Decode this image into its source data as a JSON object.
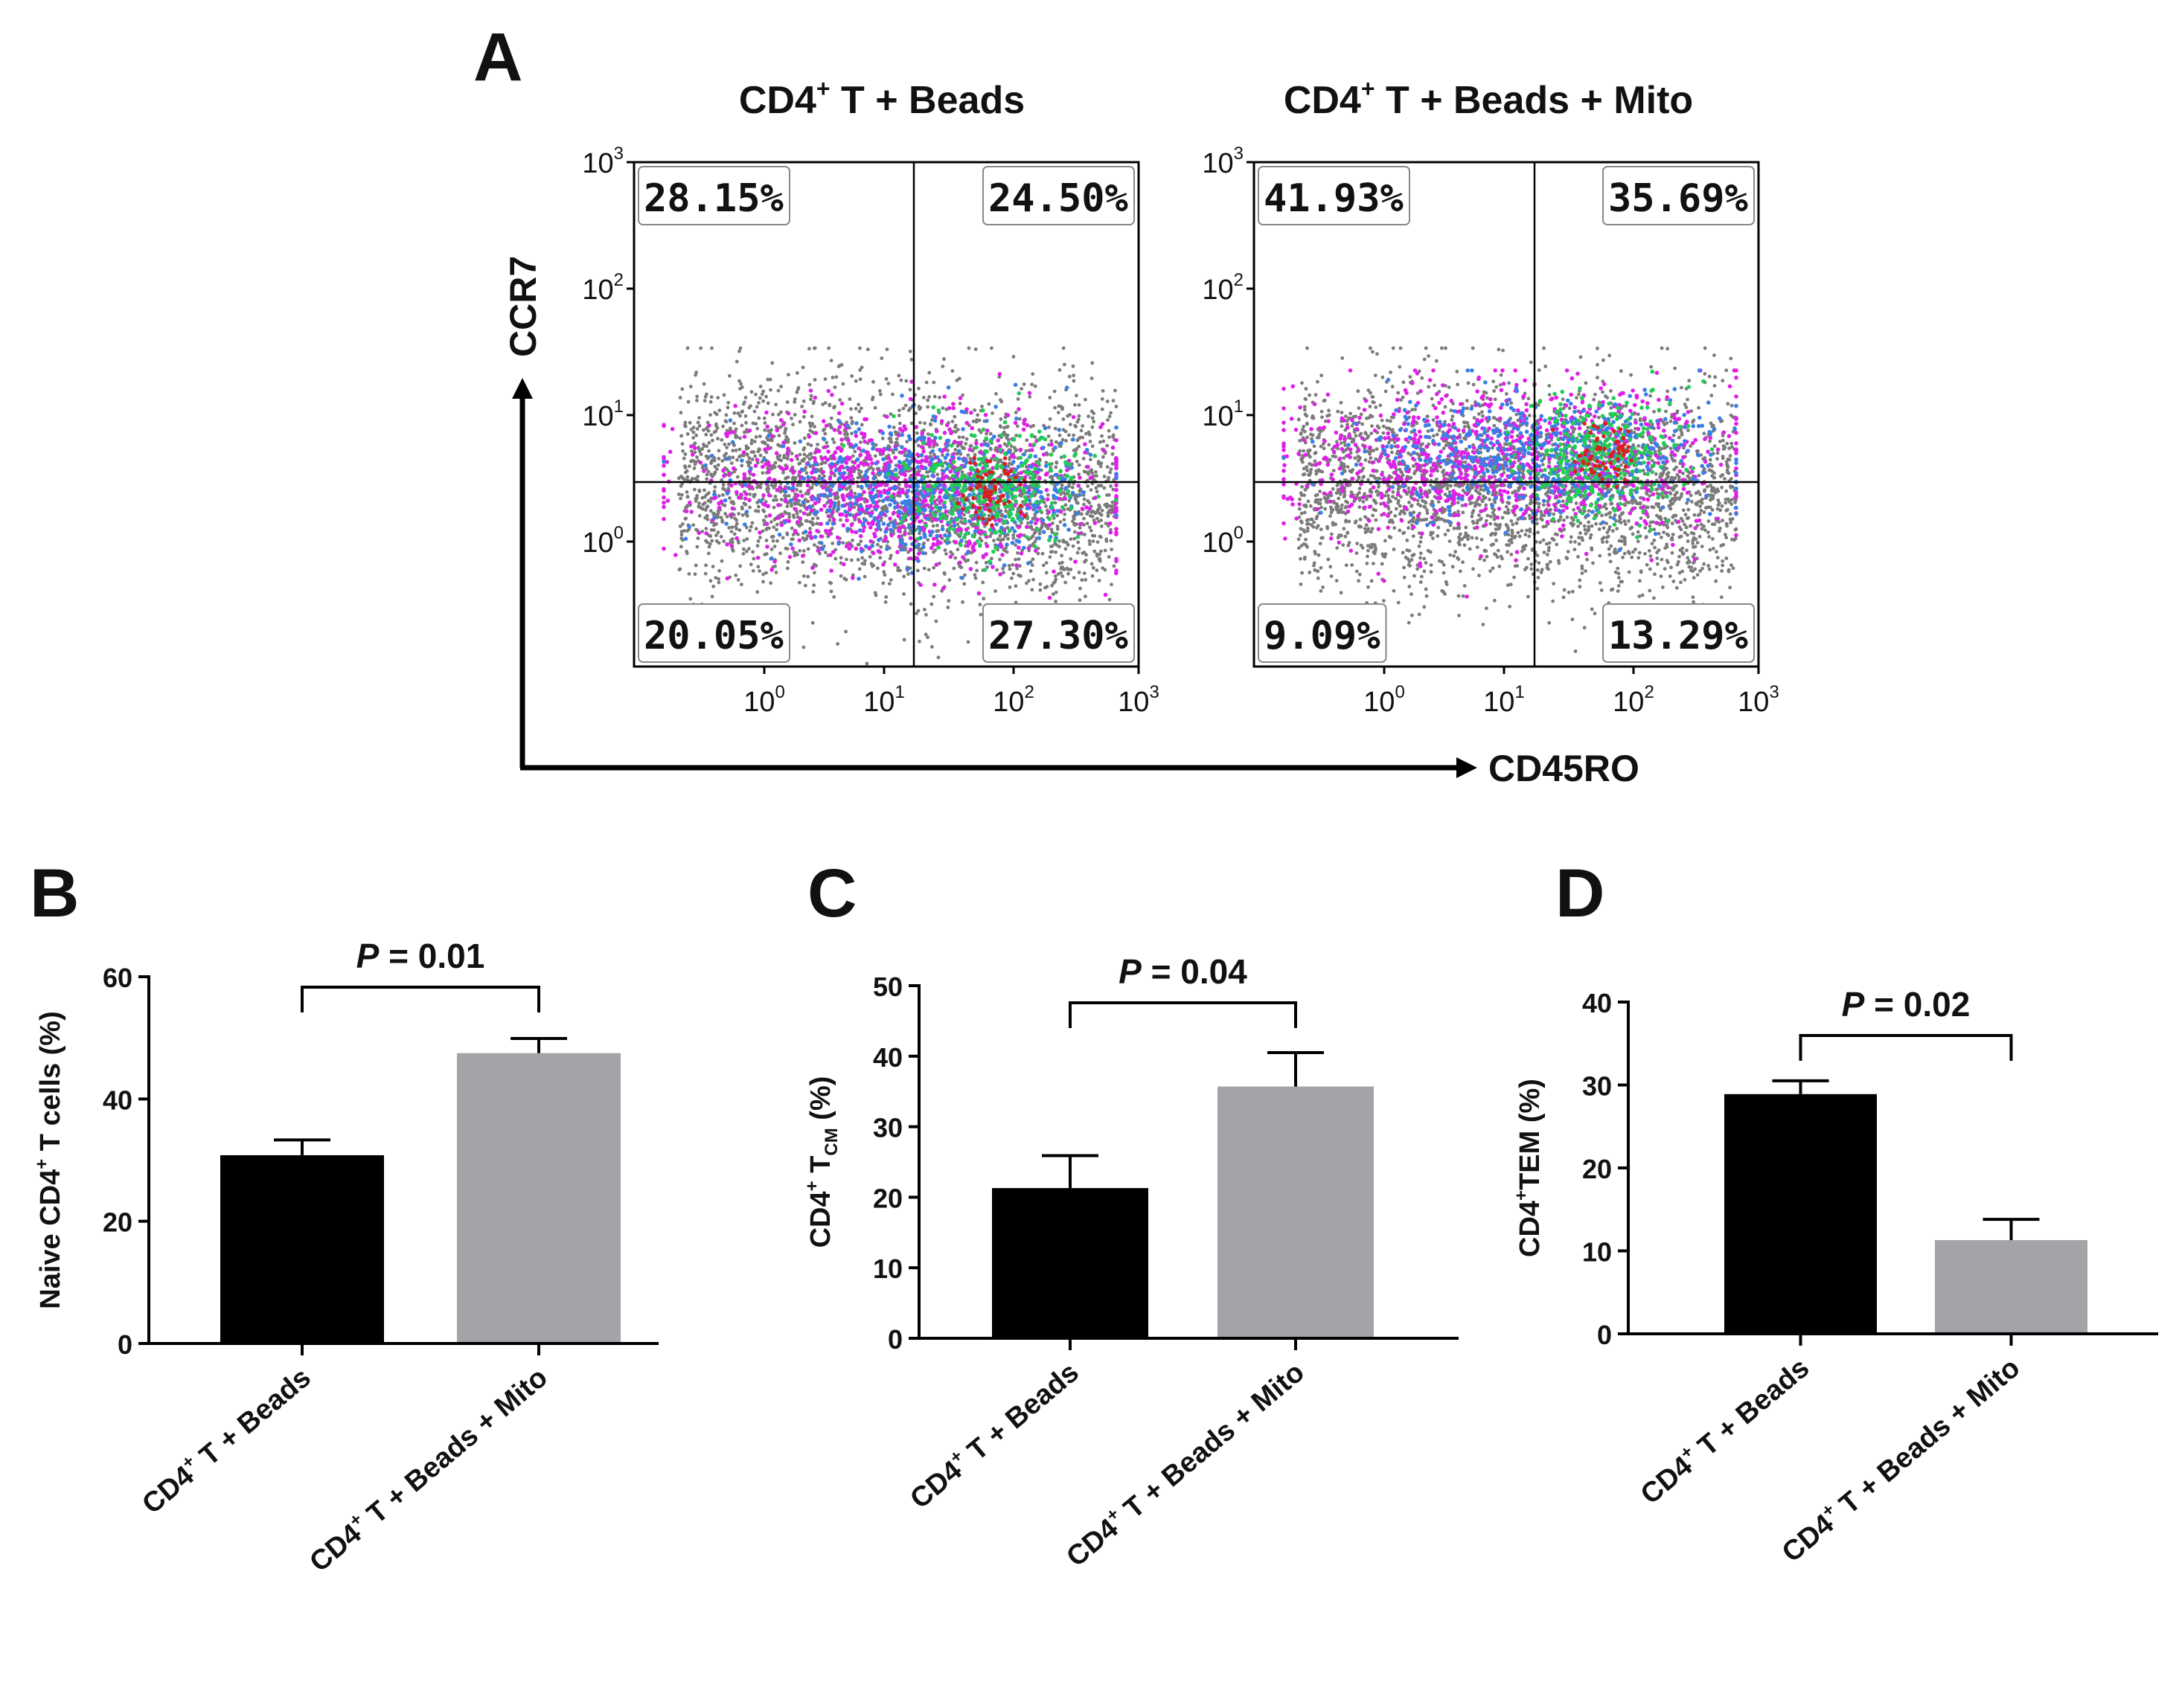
{
  "panels": {
    "A": "A",
    "B": "B",
    "C": "C",
    "D": "D"
  },
  "flow": {
    "x_axis_label": "CD45RO",
    "y_axis_label": "CCR7",
    "tick_base": "10",
    "tick_exponents": [
      "0",
      "1",
      "2",
      "3"
    ],
    "plots": [
      {
        "title_base": "CD4",
        "title_sup": "+",
        "title_rest": " T + Beads",
        "quadrants": {
          "upper_left": "28.15%",
          "upper_right": "24.50%",
          "lower_left": "20.05%",
          "lower_right": "27.30%"
        }
      },
      {
        "title_base": "CD4",
        "title_sup": "+",
        "title_rest": " T + Beads + Mito",
        "quadrants": {
          "upper_left": "41.93%",
          "upper_right": "35.69%",
          "lower_left": "9.09%",
          "lower_right": "13.29%"
        }
      }
    ]
  },
  "colors": {
    "bar_beads": "#000000",
    "bar_mito": "#a3a3a8",
    "dots_gray": "#7b7b7b",
    "dots_magenta": "#e020e8",
    "dots_blue": "#3a7fe6",
    "dots_green": "#22cc55",
    "dots_red": "#d82020"
  },
  "chart_data": [
    {
      "type": "bar",
      "panel": "B",
      "categories": [
        "CD4+ T + Beads",
        "CD4+ T + Beads + Mito"
      ],
      "values": [
        30.8,
        47.5
      ],
      "errors": [
        2.5,
        2.4
      ],
      "ylabel_pre": "Naive CD4",
      "ylabel_sup": "+",
      "ylabel_post": " T cells (%)",
      "ylabel_sub": "",
      "ylim": [
        0,
        60
      ],
      "yticks": [
        "0",
        "20",
        "40",
        "60"
      ],
      "pvalue_p": "P",
      "pvalue_text": " = 0.01"
    },
    {
      "type": "bar",
      "panel": "C",
      "categories": [
        "CD4+ T + Beads",
        "CD4+ T + Beads + Mito"
      ],
      "values": [
        21.3,
        35.7
      ],
      "errors": [
        4.6,
        4.8
      ],
      "ylabel_pre": "CD4",
      "ylabel_sup": "+",
      "ylabel_post": " T",
      "ylabel_sub": "CM",
      "ylabel_tail": " (%)",
      "ylim": [
        0,
        50
      ],
      "yticks": [
        "0",
        "10",
        "20",
        "30",
        "40",
        "50"
      ],
      "pvalue_p": "P",
      "pvalue_text": " = 0.04"
    },
    {
      "type": "bar",
      "panel": "D",
      "categories": [
        "CD4+ T + Beads",
        "CD4+ T + Beads + Mito"
      ],
      "values": [
        28.9,
        11.3
      ],
      "errors": [
        1.6,
        2.5
      ],
      "ylabel_pre": "CD4",
      "ylabel_sup": "+",
      "ylabel_post": "TEM (%)",
      "ylabel_sub": "",
      "ylim": [
        0,
        40
      ],
      "yticks": [
        "0",
        "10",
        "20",
        "30",
        "40"
      ],
      "pvalue_p": "P",
      "pvalue_text": " = 0.02"
    }
  ]
}
